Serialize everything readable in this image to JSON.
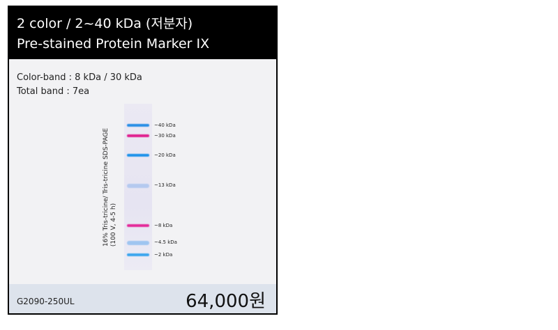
{
  "product": {
    "title_line1": "2 color / 2~40 kDa (저분자)",
    "title_line2": "Pre-stained Protein Marker IX",
    "color_band": "Color-band : 8 kDa / 30 kDa",
    "total_band": "Total band : 7ea",
    "code": "G2090-250UL",
    "price": "64,000원"
  },
  "gel": {
    "caption_line1": "16% Tris-tricine/ Tris-tricine SDS-PAGE",
    "caption_line2": "(100 V, 4-5 h)",
    "bands": [
      {
        "label": "~40 kDa",
        "color": "#2a8fe6"
      },
      {
        "label": "~30 kDa",
        "color": "#e0208f"
      },
      {
        "label": "~20 kDa",
        "color": "#1f93ea"
      },
      {
        "label": "~13 kDa",
        "color": "#a9c3ef"
      },
      {
        "label": "~8 kDa",
        "color": "#e42b9a"
      },
      {
        "label": "~4.5 kDa",
        "color": "#8dbdf0"
      },
      {
        "label": "~2 kDa",
        "color": "#3aa5ee"
      }
    ]
  }
}
